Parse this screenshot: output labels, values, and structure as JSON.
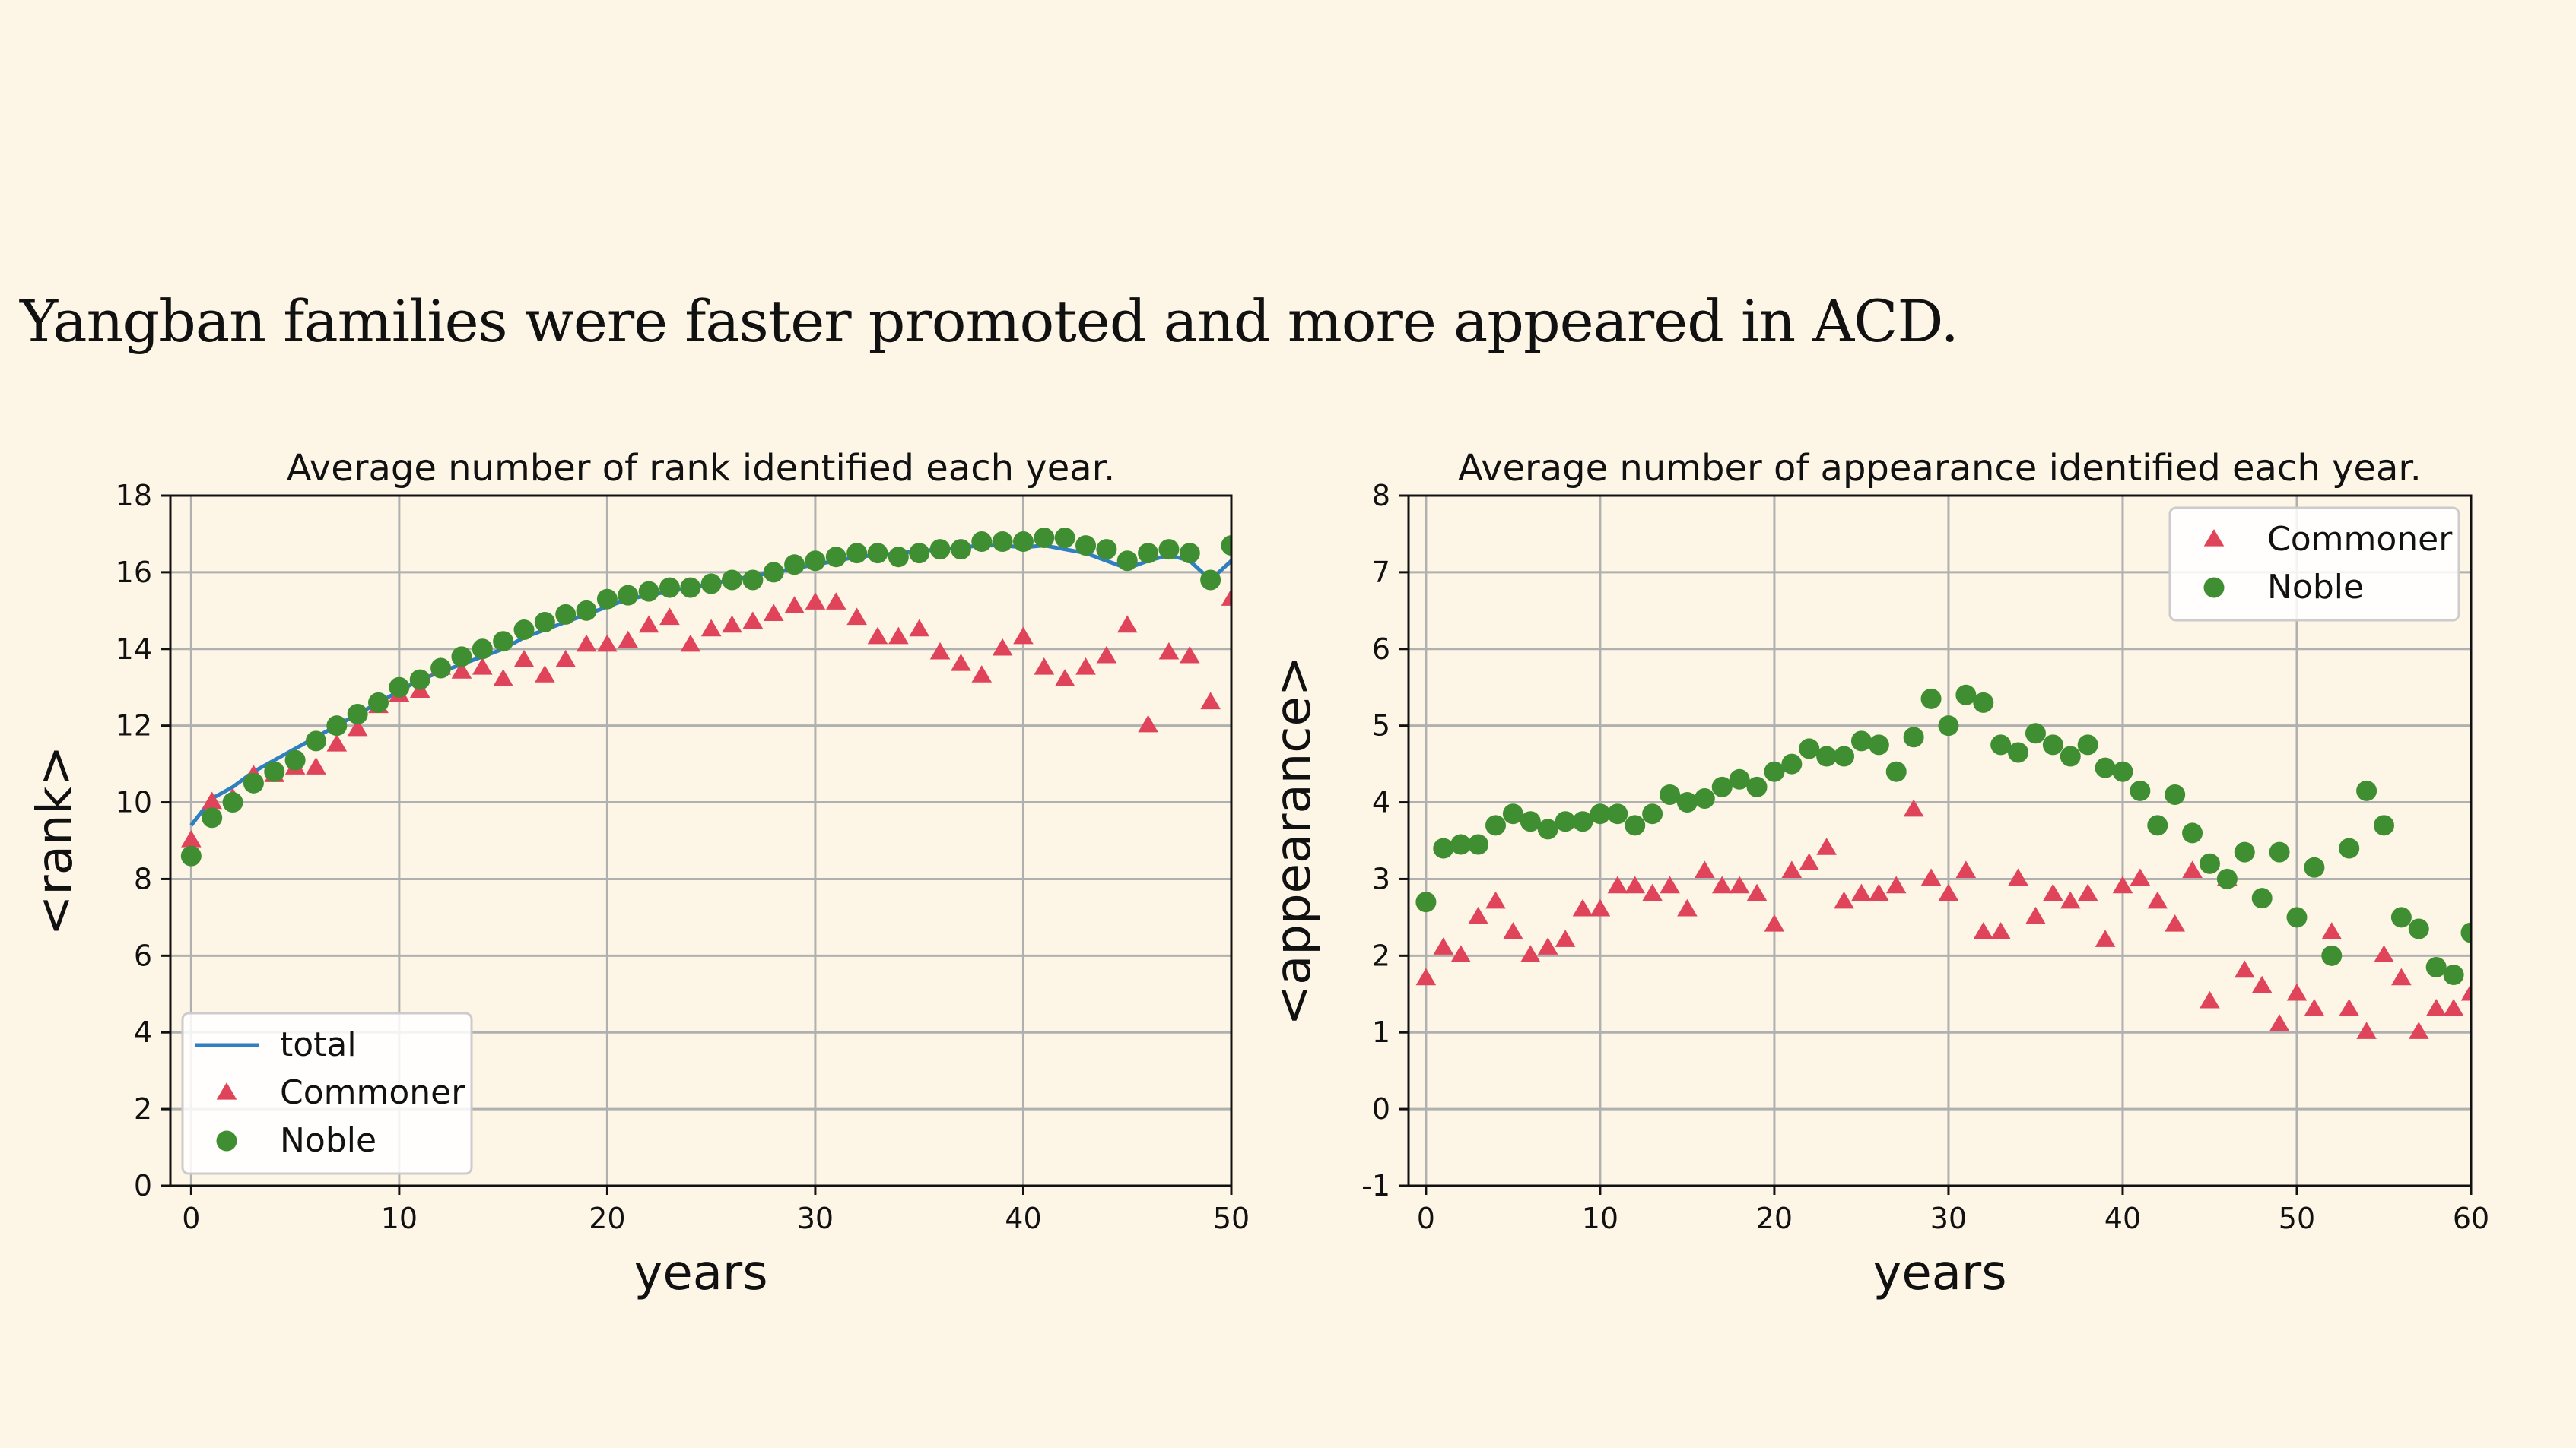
{
  "slide": {
    "title": "Yangban families were faster promoted and more appeared in ACD."
  },
  "colors": {
    "background": "#fdf5e6",
    "commoner": "#e0445a",
    "noble": "#3f8f32",
    "total": "#2f7fc1"
  },
  "chart_data": [
    {
      "type": "scatter",
      "title": "Average number of rank identified each year.",
      "xlabel": "years",
      "ylabel": "<rank>",
      "xlim": [
        -1,
        50
      ],
      "ylim": [
        0,
        18
      ],
      "xticks": [
        0,
        10,
        20,
        30,
        40,
        50
      ],
      "yticks": [
        0,
        2,
        4,
        6,
        8,
        10,
        12,
        14,
        16,
        18
      ],
      "grid": true,
      "legend": "lower-left",
      "series": [
        {
          "name": "total",
          "kind": "line",
          "x": [
            0,
            1,
            2,
            3,
            4,
            5,
            6,
            7,
            8,
            9,
            10,
            11,
            12,
            13,
            14,
            15,
            16,
            17,
            18,
            19,
            20,
            21,
            22,
            23,
            24,
            25,
            26,
            27,
            28,
            29,
            30,
            31,
            32,
            33,
            34,
            35,
            36,
            37,
            38,
            39,
            40,
            41,
            42,
            43,
            44,
            45,
            46,
            47,
            48,
            49,
            50
          ],
          "y": [
            9.4,
            10.1,
            10.4,
            10.8,
            11.1,
            11.4,
            11.7,
            12.0,
            12.3,
            12.6,
            12.9,
            13.2,
            13.4,
            13.6,
            13.8,
            14.0,
            14.3,
            14.5,
            14.7,
            14.9,
            15.1,
            15.3,
            15.4,
            15.5,
            15.6,
            15.7,
            15.8,
            15.9,
            16.0,
            16.1,
            16.2,
            16.3,
            16.4,
            16.45,
            16.5,
            16.55,
            16.6,
            16.65,
            16.7,
            16.7,
            16.65,
            16.7,
            16.6,
            16.5,
            16.3,
            16.1,
            16.3,
            16.45,
            16.3,
            15.8,
            16.3
          ]
        },
        {
          "name": "Commoner",
          "kind": "marker-triangle",
          "x": [
            0,
            1,
            2,
            3,
            4,
            5,
            6,
            7,
            8,
            9,
            10,
            11,
            12,
            13,
            14,
            15,
            16,
            17,
            18,
            19,
            20,
            21,
            22,
            23,
            24,
            25,
            26,
            27,
            28,
            29,
            30,
            31,
            32,
            33,
            34,
            35,
            36,
            37,
            38,
            39,
            40,
            41,
            42,
            43,
            44,
            45,
            46,
            47,
            48,
            49,
            50
          ],
          "y": [
            9.0,
            10.0,
            10.1,
            10.7,
            10.7,
            10.9,
            10.9,
            11.5,
            11.9,
            12.5,
            12.8,
            12.9,
            13.5,
            13.4,
            13.5,
            13.2,
            13.7,
            13.3,
            13.7,
            14.1,
            14.1,
            14.2,
            14.6,
            14.8,
            14.1,
            14.5,
            14.6,
            14.7,
            14.9,
            15.1,
            15.2,
            15.2,
            14.8,
            14.3,
            14.3,
            14.5,
            13.9,
            13.6,
            13.3,
            14.0,
            14.3,
            13.5,
            13.2,
            13.5,
            13.8,
            14.6,
            12.0,
            13.9,
            13.8,
            12.6,
            15.3
          ]
        },
        {
          "name": "Noble",
          "kind": "marker-circle",
          "x": [
            0,
            1,
            2,
            3,
            4,
            5,
            6,
            7,
            8,
            9,
            10,
            11,
            12,
            13,
            14,
            15,
            16,
            17,
            18,
            19,
            20,
            21,
            22,
            23,
            24,
            25,
            26,
            27,
            28,
            29,
            30,
            31,
            32,
            33,
            34,
            35,
            36,
            37,
            38,
            39,
            40,
            41,
            42,
            43,
            44,
            45,
            46,
            47,
            48,
            49,
            50
          ],
          "y": [
            8.6,
            9.6,
            10.0,
            10.5,
            10.8,
            11.1,
            11.6,
            12.0,
            12.3,
            12.6,
            13.0,
            13.2,
            13.5,
            13.8,
            14.0,
            14.2,
            14.5,
            14.7,
            14.9,
            15.0,
            15.3,
            15.4,
            15.5,
            15.6,
            15.6,
            15.7,
            15.8,
            15.8,
            16.0,
            16.2,
            16.3,
            16.4,
            16.5,
            16.5,
            16.4,
            16.5,
            16.6,
            16.6,
            16.8,
            16.8,
            16.8,
            16.9,
            16.9,
            16.7,
            16.6,
            16.3,
            16.5,
            16.6,
            16.5,
            15.8,
            16.7
          ]
        }
      ]
    },
    {
      "type": "scatter",
      "title": "Average number of appearance identified each year.",
      "xlabel": "years",
      "ylabel": "<appearance>",
      "xlim": [
        -1,
        60
      ],
      "ylim": [
        -1,
        8
      ],
      "xticks": [
        0,
        10,
        20,
        30,
        40,
        50,
        60
      ],
      "yticks": [
        -1,
        0,
        1,
        2,
        3,
        4,
        5,
        6,
        7,
        8
      ],
      "grid": true,
      "legend": "top-right",
      "series": [
        {
          "name": "Commoner",
          "kind": "marker-triangle",
          "x": [
            0,
            1,
            2,
            3,
            4,
            5,
            6,
            7,
            8,
            9,
            10,
            11,
            12,
            13,
            14,
            15,
            16,
            17,
            18,
            19,
            20,
            21,
            22,
            23,
            24,
            25,
            26,
            27,
            28,
            29,
            30,
            31,
            32,
            33,
            34,
            35,
            36,
            37,
            38,
            39,
            40,
            41,
            42,
            43,
            44,
            45,
            46,
            47,
            48,
            49,
            50,
            51,
            52,
            53,
            54,
            55,
            56,
            57,
            58,
            59,
            60
          ],
          "y": [
            1.7,
            2.1,
            2.0,
            2.5,
            2.7,
            2.3,
            2.0,
            2.1,
            2.2,
            2.6,
            2.6,
            2.9,
            2.9,
            2.8,
            2.9,
            2.6,
            3.1,
            2.9,
            2.9,
            2.8,
            2.4,
            3.1,
            3.2,
            3.4,
            2.7,
            2.8,
            2.8,
            2.9,
            3.9,
            3.0,
            2.8,
            3.1,
            2.3,
            2.3,
            3.0,
            2.5,
            2.8,
            2.7,
            2.8,
            2.2,
            2.9,
            3.0,
            2.7,
            2.4,
            3.1,
            1.4,
            3.0,
            1.8,
            1.6,
            1.1,
            1.5,
            1.3,
            2.3,
            1.3,
            1.0,
            2.0,
            1.7,
            1.0,
            1.3,
            1.3,
            1.5
          ]
        },
        {
          "name": "Noble",
          "kind": "marker-circle",
          "x": [
            0,
            1,
            2,
            3,
            4,
            5,
            6,
            7,
            8,
            9,
            10,
            11,
            12,
            13,
            14,
            15,
            16,
            17,
            18,
            19,
            20,
            21,
            22,
            23,
            24,
            25,
            26,
            27,
            28,
            29,
            30,
            31,
            32,
            33,
            34,
            35,
            36,
            37,
            38,
            39,
            40,
            41,
            42,
            43,
            44,
            45,
            46,
            47,
            48,
            49,
            50,
            51,
            52,
            53,
            54,
            55,
            56,
            57,
            58,
            59,
            60
          ],
          "y": [
            2.7,
            3.4,
            3.45,
            3.45,
            3.7,
            3.85,
            3.75,
            3.65,
            3.75,
            3.75,
            3.85,
            3.85,
            3.7,
            3.85,
            4.1,
            4.0,
            4.05,
            4.2,
            4.3,
            4.2,
            4.4,
            4.5,
            4.7,
            4.6,
            4.6,
            4.8,
            4.75,
            4.4,
            4.85,
            5.35,
            5.0,
            5.4,
            5.3,
            4.75,
            4.65,
            4.9,
            4.75,
            4.6,
            4.75,
            4.45,
            4.4,
            4.15,
            3.7,
            4.1,
            3.6,
            3.2,
            3.0,
            3.35,
            2.75,
            3.35,
            2.5,
            3.15,
            2.0,
            3.4,
            4.15,
            3.7,
            2.5,
            2.35,
            1.85,
            1.75,
            2.3
          ]
        }
      ]
    }
  ]
}
